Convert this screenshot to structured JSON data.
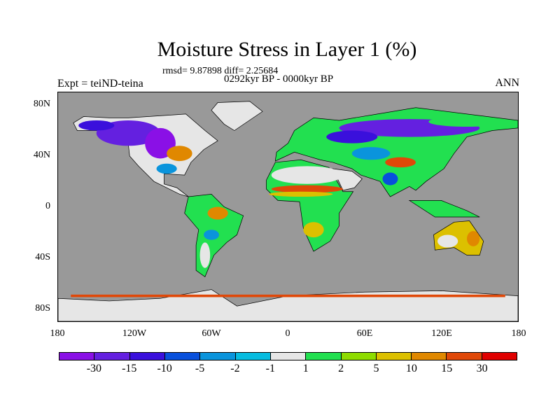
{
  "chart_data": {
    "type": "heatmap",
    "title": "Moisture Stress in Layer 1 (%)",
    "subtitle_stats": "rmsd= 9.87898 diff= 2.25684",
    "subtitle_period": "0292kyr BP - 0000kyr BP",
    "left_label": "Expt = teiND-teina",
    "right_label": "ANN",
    "projection": "cylindrical equidistant",
    "xlim": [
      -180,
      180
    ],
    "ylim": [
      -90,
      90
    ],
    "lat_ticks": [
      "80N",
      "40N",
      "0",
      "40S",
      "80S"
    ],
    "lat_values": [
      80,
      40,
      0,
      -40,
      -80
    ],
    "lon_ticks": [
      "180",
      "120W",
      "60W",
      "0",
      "60E",
      "120E",
      "180"
    ],
    "lon_values": [
      -180,
      -120,
      -60,
      0,
      60,
      120,
      180
    ],
    "missing_color": "#999999",
    "colorbar": {
      "levels": [
        "-30",
        "-15",
        "-10",
        "-5",
        "-2",
        "-1",
        "1",
        "2",
        "5",
        "10",
        "15",
        "30"
      ],
      "colors": [
        "#8a10e6",
        "#6420e0",
        "#3a10dc",
        "#0850dc",
        "#0a94dc",
        "#06bce0",
        "#e6e6e6",
        "#22e050",
        "#8edc00",
        "#dcc000",
        "#e08800",
        "#e04808",
        "#e00000"
      ]
    }
  }
}
